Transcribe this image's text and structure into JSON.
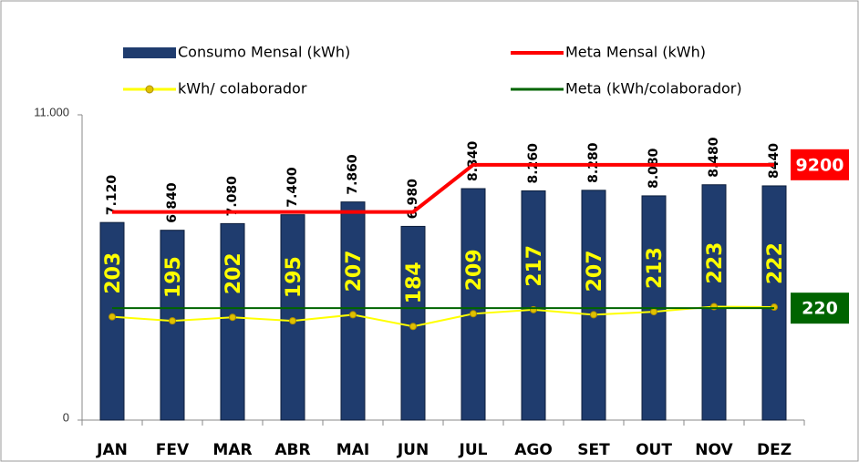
{
  "chart_data": {
    "type": "bar",
    "categories": [
      "JAN",
      "FEV",
      "MAR",
      "ABR",
      "MAI",
      "JUN",
      "JUL",
      "AGO",
      "SET",
      "OUT",
      "NOV",
      "DEZ"
    ],
    "ylim": [
      0,
      11000
    ],
    "yticks": [
      0,
      {
        "value": 11000,
        "label": "11.000"
      }
    ],
    "y2lim": [
      0,
      600
    ],
    "series": [
      {
        "name": "Consumo Mensal (kWh)",
        "type": "bar",
        "color": "#1f3c6e",
        "values": [
          7120,
          6840,
          7080,
          7400,
          7860,
          6980,
          8340,
          8260,
          8280,
          8080,
          8480,
          8440
        ],
        "value_labels": [
          "7.120",
          "6.840",
          "7.080",
          "7.400",
          "7.860",
          "6.980",
          "8.340",
          "8.260",
          "8.280",
          "8.080",
          "8.480",
          "8440"
        ]
      },
      {
        "name": "Meta Mensal (kWh)",
        "type": "line",
        "color": "#ff0000",
        "values": [
          7500,
          7500,
          7500,
          7500,
          7500,
          7500,
          9200,
          9200,
          9200,
          9200,
          9200,
          9200
        ],
        "value_labels": [
          null,
          null,
          null,
          null,
          null,
          null,
          null,
          null,
          null,
          null,
          null,
          "9200"
        ]
      },
      {
        "name": "kWh/ colaborador",
        "type": "line",
        "axis": "y2",
        "color": "#ffff00",
        "marker": true,
        "values": [
          203,
          195,
          202,
          195,
          207,
          184,
          209,
          217,
          207,
          213,
          223,
          222
        ]
      },
      {
        "name": "Meta (kWh/colaborador)",
        "type": "line",
        "axis": "y2",
        "color": "#006400",
        "values": [
          220,
          220,
          220,
          220,
          220,
          220,
          220,
          220,
          220,
          220,
          220,
          220
        ],
        "value_labels": [
          null,
          null,
          null,
          null,
          null,
          null,
          null,
          null,
          null,
          null,
          null,
          "220"
        ]
      }
    ]
  }
}
